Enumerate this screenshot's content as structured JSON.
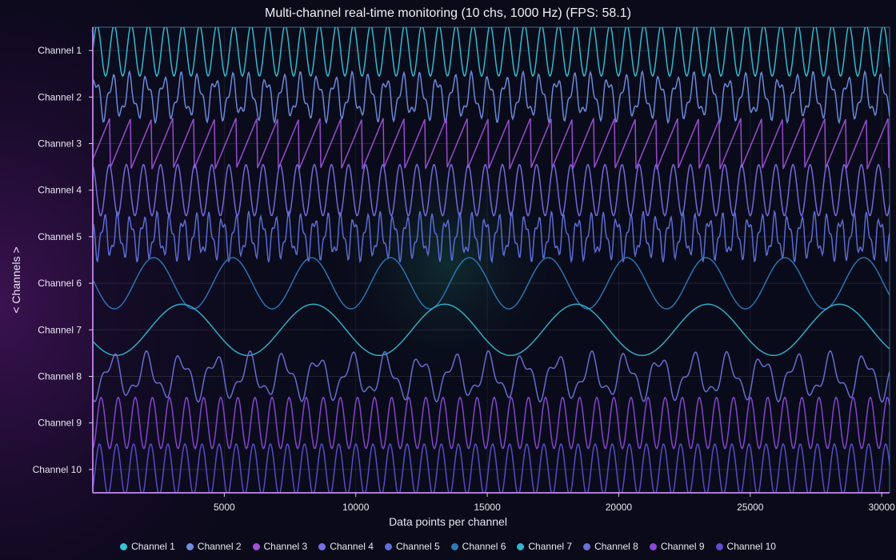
{
  "chart_data": {
    "type": "line",
    "title": "Multi-channel real-time monitoring (10 chs, 1000 Hz) (FPS: 58.1)",
    "xlabel": "Data points per channel",
    "ylabel": "< Channels >",
    "xlim": [
      0,
      30300
    ],
    "x_ticks": [
      5000,
      10000,
      15000,
      20000,
      25000,
      30000
    ],
    "grid": true,
    "legend_position": "bottom-center",
    "categories": [
      "Channel 1",
      "Channel 2",
      "Channel 3",
      "Channel 4",
      "Channel 5",
      "Channel 6",
      "Channel 7",
      "Channel 8",
      "Channel 9",
      "Channel 10"
    ],
    "series": [
      {
        "name": "Channel 1",
        "color": "#35c3d6",
        "period": 650,
        "waveform": "sine"
      },
      {
        "name": "Channel 2",
        "color": "#6f8fe0",
        "period": 650,
        "waveform": "mixed-sine"
      },
      {
        "name": "Channel 3",
        "color": "#a04fd8",
        "period": 800,
        "waveform": "sawtooth"
      },
      {
        "name": "Channel 4",
        "color": "#7a6ee2",
        "period": 650,
        "waveform": "sine"
      },
      {
        "name": "Channel 5",
        "color": "#5f70da",
        "period": 500,
        "waveform": "mixed-sine"
      },
      {
        "name": "Channel 6",
        "color": "#2e78b8",
        "period": 3000,
        "waveform": "sine"
      },
      {
        "name": "Channel 7",
        "color": "#36b2cc",
        "period": 5000,
        "waveform": "sine"
      },
      {
        "name": "Channel 8",
        "color": "#6a72d6",
        "period": 1300,
        "waveform": "mixed-sine"
      },
      {
        "name": "Channel 9",
        "color": "#8a48d8",
        "period": 650,
        "waveform": "sine"
      },
      {
        "name": "Channel 10",
        "color": "#5c4fd0",
        "period": 650,
        "waveform": "sine"
      }
    ]
  }
}
